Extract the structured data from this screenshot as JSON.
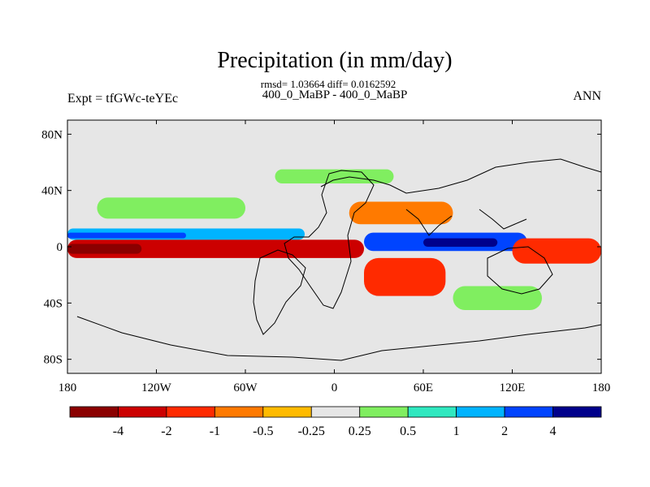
{
  "chart_data": {
    "type": "heatmap",
    "title": "Precipitation (in mm/day)",
    "stats_line": "rmsd= 1.03664 diff= 0.0162592",
    "subtitle": "400_0_MaBP - 400_0_MaBP",
    "left_label": "Expt = tfGWc-teYEc",
    "right_label": "ANN",
    "units": "mm/day",
    "x_range": [
      -180,
      180
    ],
    "y_range": [
      -90,
      90
    ],
    "x_ticks": [
      {
        "value": -180,
        "label": "180"
      },
      {
        "value": -120,
        "label": "120W"
      },
      {
        "value": -60,
        "label": "60W"
      },
      {
        "value": 0,
        "label": "0"
      },
      {
        "value": 60,
        "label": "60E"
      },
      {
        "value": 120,
        "label": "120E"
      },
      {
        "value": 180,
        "label": "180"
      }
    ],
    "y_ticks": [
      {
        "value": 80,
        "label": "80N"
      },
      {
        "value": 40,
        "label": "40N"
      },
      {
        "value": 0,
        "label": "0"
      },
      {
        "value": -40,
        "label": "40S"
      },
      {
        "value": -80,
        "label": "80S"
      }
    ],
    "colorbar": {
      "colors": [
        "#8b0000",
        "#cc0000",
        "#ff2a00",
        "#ff7a00",
        "#ffbb00",
        "#e6e6e6",
        "#80ee60",
        "#30e8c0",
        "#00b4ff",
        "#0044ff",
        "#00008b"
      ],
      "labels": [
        "-4",
        "-2",
        "-1",
        "-0.5",
        "-0.25",
        "0.25",
        "0.5",
        "1",
        "2",
        "4"
      ]
    },
    "anomaly_regions": [
      {
        "name": "north-pacific-equatorial-wet",
        "lon_min": -180,
        "lon_max": -20,
        "lat_min": 5,
        "lat_max": 13,
        "level": 8
      },
      {
        "name": "north-pacific-equatorial-core",
        "lon_min": -180,
        "lon_max": -100,
        "lat_min": 6,
        "lat_max": 10,
        "level": 9
      },
      {
        "name": "central-equatorial-dry",
        "lon_min": -180,
        "lon_max": 20,
        "lat_min": -8,
        "lat_max": 5,
        "level": 1
      },
      {
        "name": "west-equatorial-dry-core",
        "lon_min": -180,
        "lon_max": -130,
        "lat_min": -5,
        "lat_max": 2,
        "level": 0
      },
      {
        "name": "indian-ocean-wet",
        "lon_min": 20,
        "lon_max": 130,
        "lat_min": -3,
        "lat_max": 10,
        "level": 9
      },
      {
        "name": "indian-ocean-wet-core",
        "lon_min": 60,
        "lon_max": 110,
        "lat_min": 0,
        "lat_max": 6,
        "level": 10
      },
      {
        "name": "southern-subtropic-dry",
        "lon_min": 20,
        "lon_max": 75,
        "lat_min": -35,
        "lat_max": -8,
        "level": 2
      },
      {
        "name": "northern-midlatitude-dry",
        "lon_min": 10,
        "lon_max": 80,
        "lat_min": 16,
        "lat_max": 32,
        "level": 3
      },
      {
        "name": "western-pacific-dry",
        "lon_min": 120,
        "lon_max": 180,
        "lat_min": -12,
        "lat_max": 6,
        "level": 2
      },
      {
        "name": "north-atlantic-green",
        "lon_min": -160,
        "lon_max": -60,
        "lat_min": 20,
        "lat_max": 35,
        "level": 6
      },
      {
        "name": "south-indian-green",
        "lon_min": 80,
        "lon_max": 140,
        "lat_min": -45,
        "lat_max": -28,
        "level": 6
      },
      {
        "name": "high-north-green",
        "lon_min": -40,
        "lon_max": 40,
        "lat_min": 45,
        "lat_max": 55,
        "level": 6
      }
    ]
  }
}
